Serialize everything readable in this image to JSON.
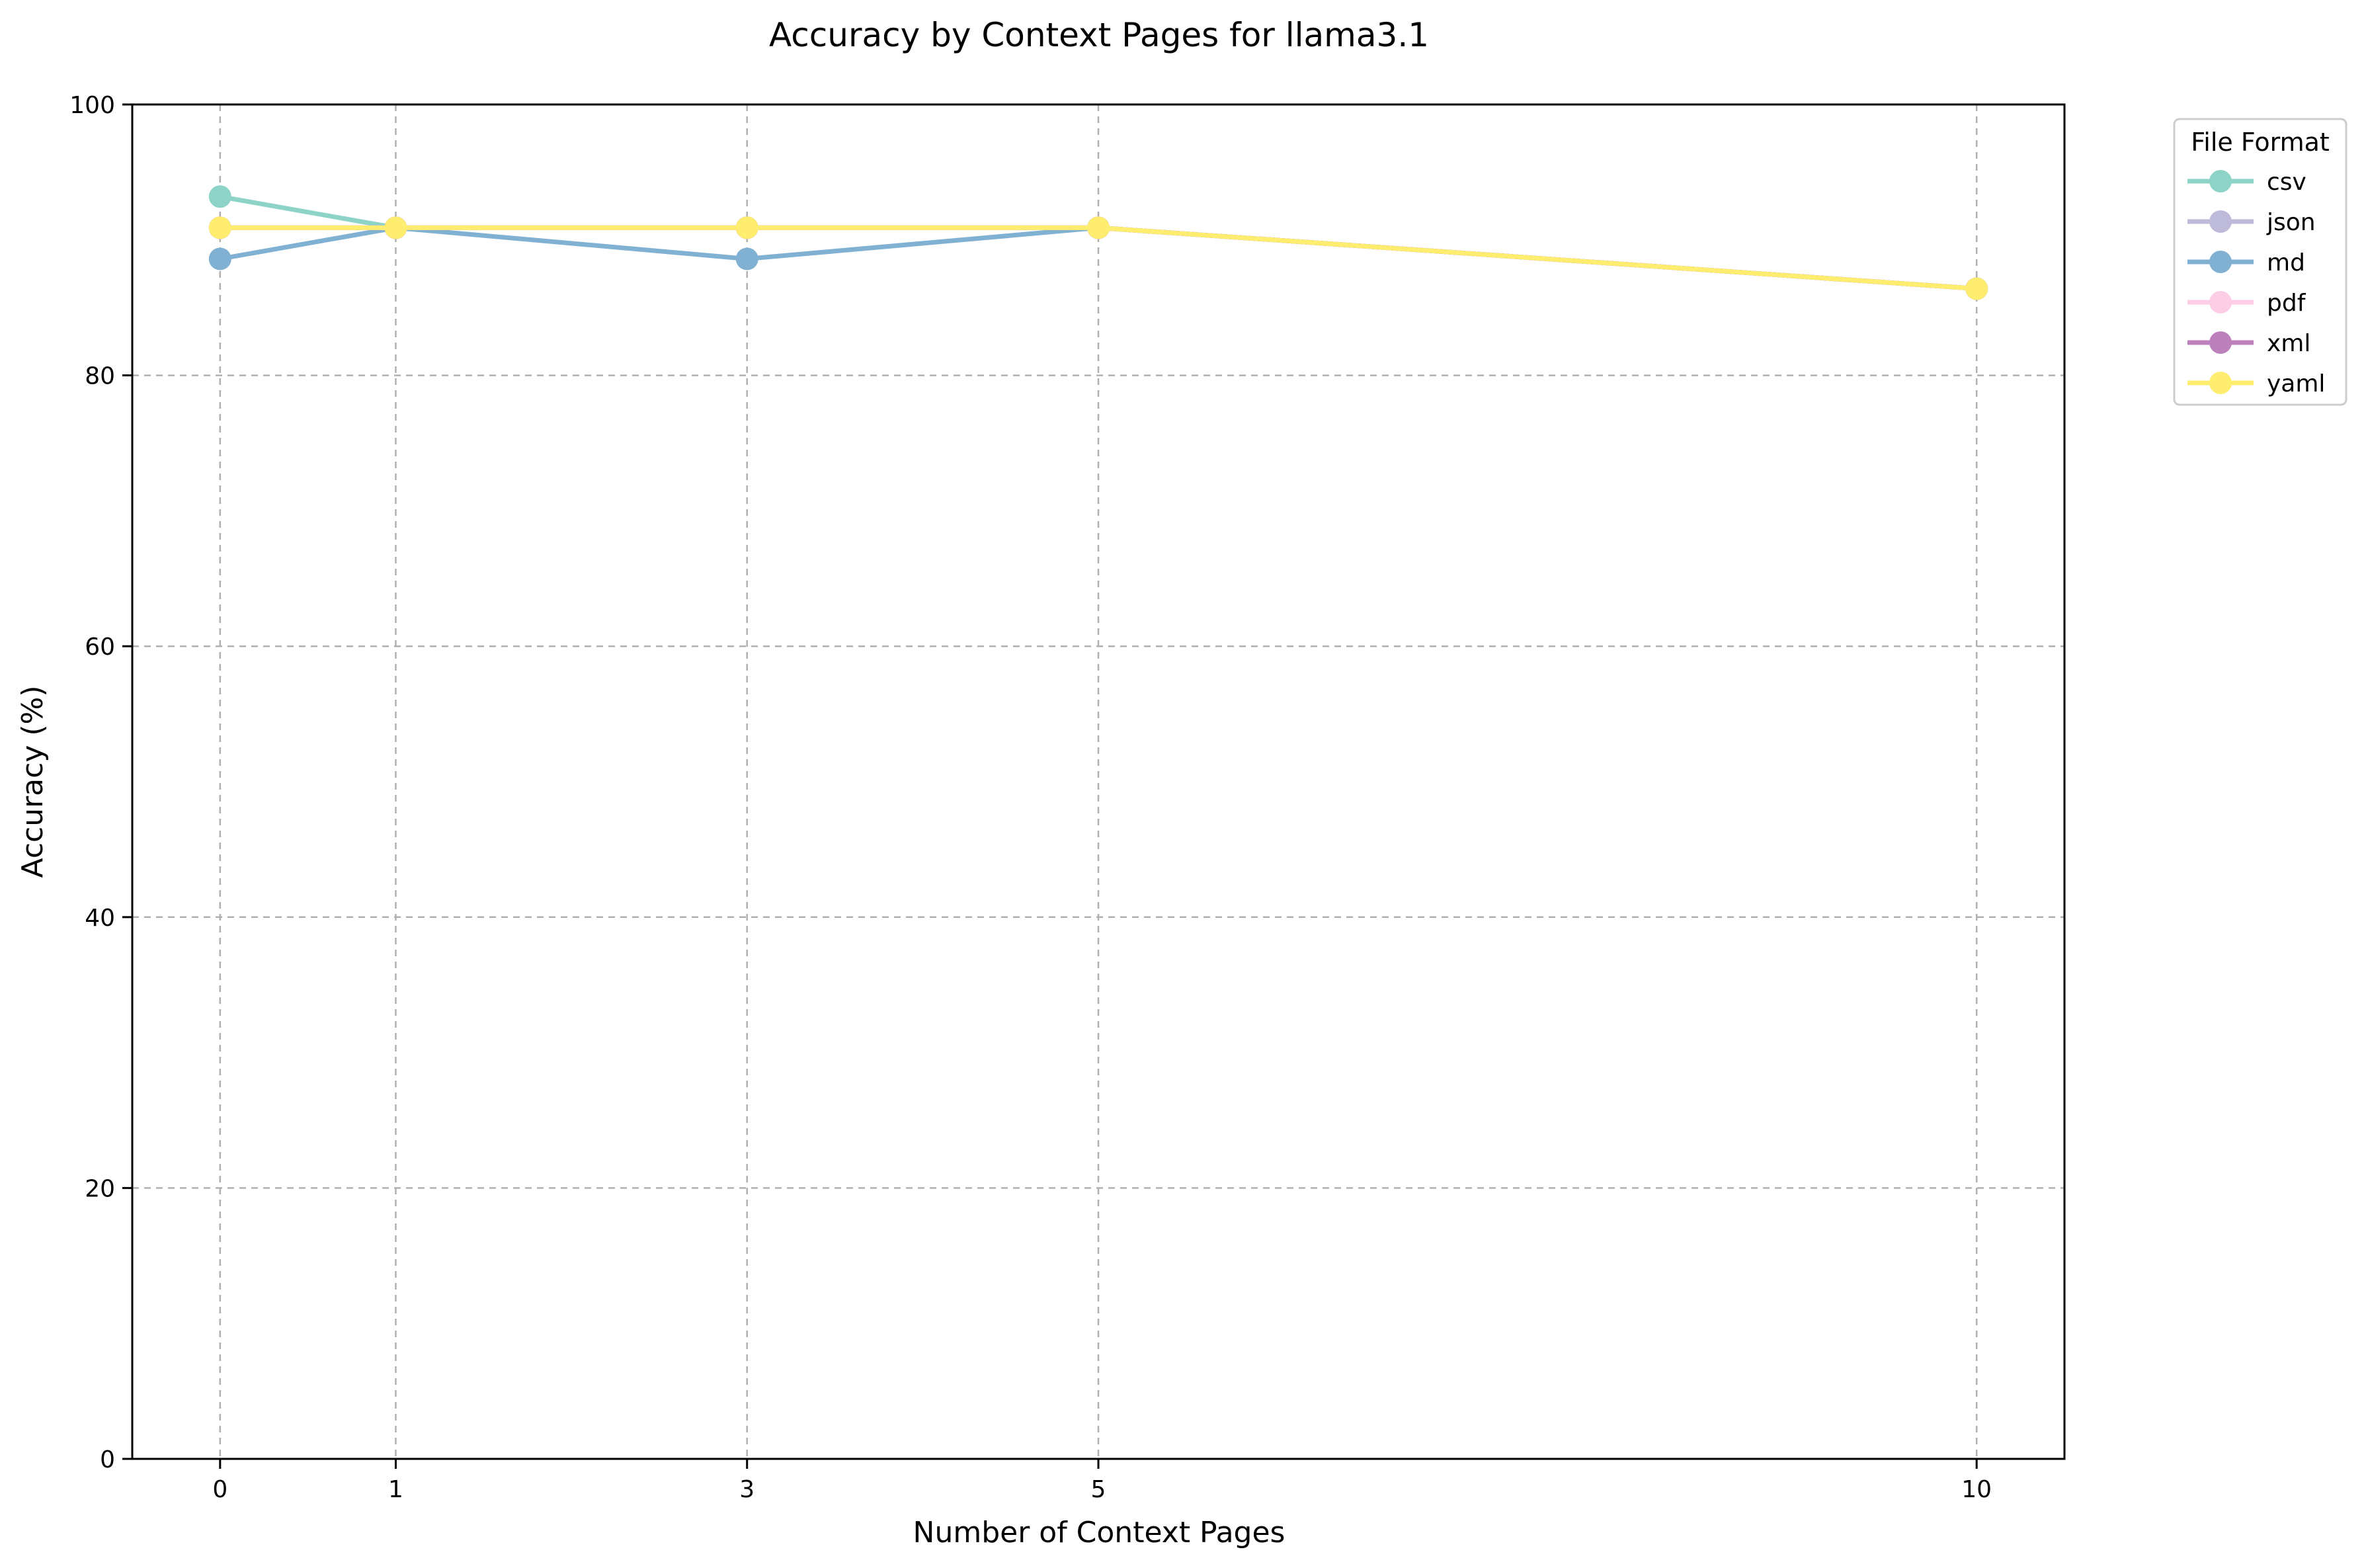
{
  "chart_data": {
    "type": "line",
    "title": "Accuracy by Context Pages for llama3.1",
    "xlabel": "Number of Context Pages",
    "ylabel": "Accuracy (%)",
    "x": [
      0,
      1,
      3,
      5,
      10
    ],
    "xticks": [
      0,
      1,
      3,
      5,
      10
    ],
    "xlim": [
      -0.5,
      10.5
    ],
    "ylim": [
      0,
      100
    ],
    "yticks": [
      0,
      20,
      40,
      60,
      80,
      100
    ],
    "grid": true,
    "legend": {
      "title": "File Format",
      "placement": "outside-top-right"
    },
    "series": [
      {
        "name": "csv",
        "color": "#8dd3c7",
        "values": [
          93.2,
          90.9,
          90.9,
          90.9,
          86.4
        ]
      },
      {
        "name": "json",
        "color": "#bebada",
        "values": [
          90.9,
          90.9,
          90.9,
          90.9,
          86.4
        ]
      },
      {
        "name": "md",
        "color": "#80b1d3",
        "values": [
          88.6,
          90.9,
          88.6,
          90.9,
          86.4
        ]
      },
      {
        "name": "pdf",
        "color": "#fccde5",
        "values": [
          90.9,
          90.9,
          90.9,
          90.9,
          86.4
        ]
      },
      {
        "name": "xml",
        "color": "#bc80bd",
        "values": [
          90.9,
          90.9,
          90.9,
          90.9,
          86.4
        ]
      },
      {
        "name": "yaml",
        "color": "#ffed6f",
        "values": [
          90.9,
          90.9,
          90.9,
          90.9,
          86.4
        ]
      }
    ]
  }
}
